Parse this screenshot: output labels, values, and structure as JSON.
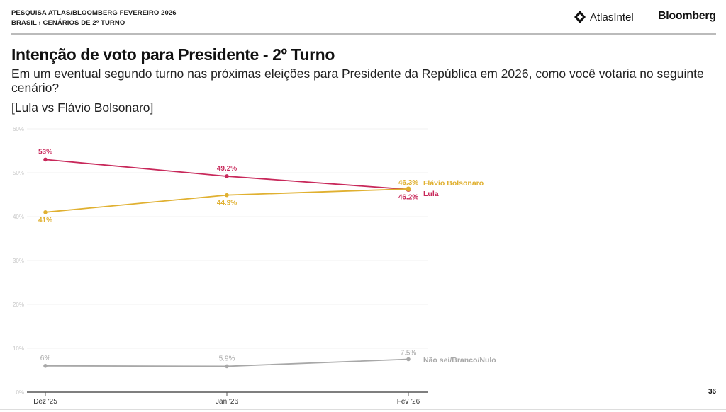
{
  "header": {
    "line1": "PESQUISA ATLAS/BLOOMBERG FEVEREIRO 2026",
    "line2": "BRASIL › CENÁRIOS DE 2º TURNO",
    "logo_atlas": "AtlasIntel",
    "logo_bloomberg": "Bloomberg"
  },
  "title": "Intenção de voto para Presidente - 2º Turno",
  "subtitle": "Em um eventual segundo turno nas próximas eleições para Presidente da República em 2026, como você votaria no seguinte cenário?",
  "scenario": "[Lula vs Flávio Bolsonaro]",
  "page_number": "36",
  "chart_data": {
    "type": "line",
    "categories": [
      "Dez '25",
      "Jan '26",
      "Fev '26"
    ],
    "ylim": [
      0,
      60
    ],
    "yticks": [
      0,
      10,
      20,
      30,
      40,
      50,
      60
    ],
    "ytick_labels": [
      "0%",
      "10%",
      "20%",
      "30%",
      "40%",
      "50%",
      "60%"
    ],
    "grid": true,
    "legend": "end-of-line labels",
    "series": [
      {
        "name": "Lula",
        "values": [
          53,
          49.2,
          46.2
        ],
        "labels": [
          "53%",
          "49.2%",
          "46.2%"
        ],
        "color": "#c8285a"
      },
      {
        "name": "Flávio Bolsonaro",
        "values": [
          41,
          44.9,
          46.3
        ],
        "labels": [
          "41%",
          "44.9%",
          "46.3%"
        ],
        "color": "#e0b030"
      },
      {
        "name": "Não sei/Branco/Nulo",
        "values": [
          6,
          5.9,
          7.5
        ],
        "labels": [
          "6%",
          "5.9%",
          "7.5%"
        ],
        "color": "#a8a8a8"
      }
    ]
  }
}
